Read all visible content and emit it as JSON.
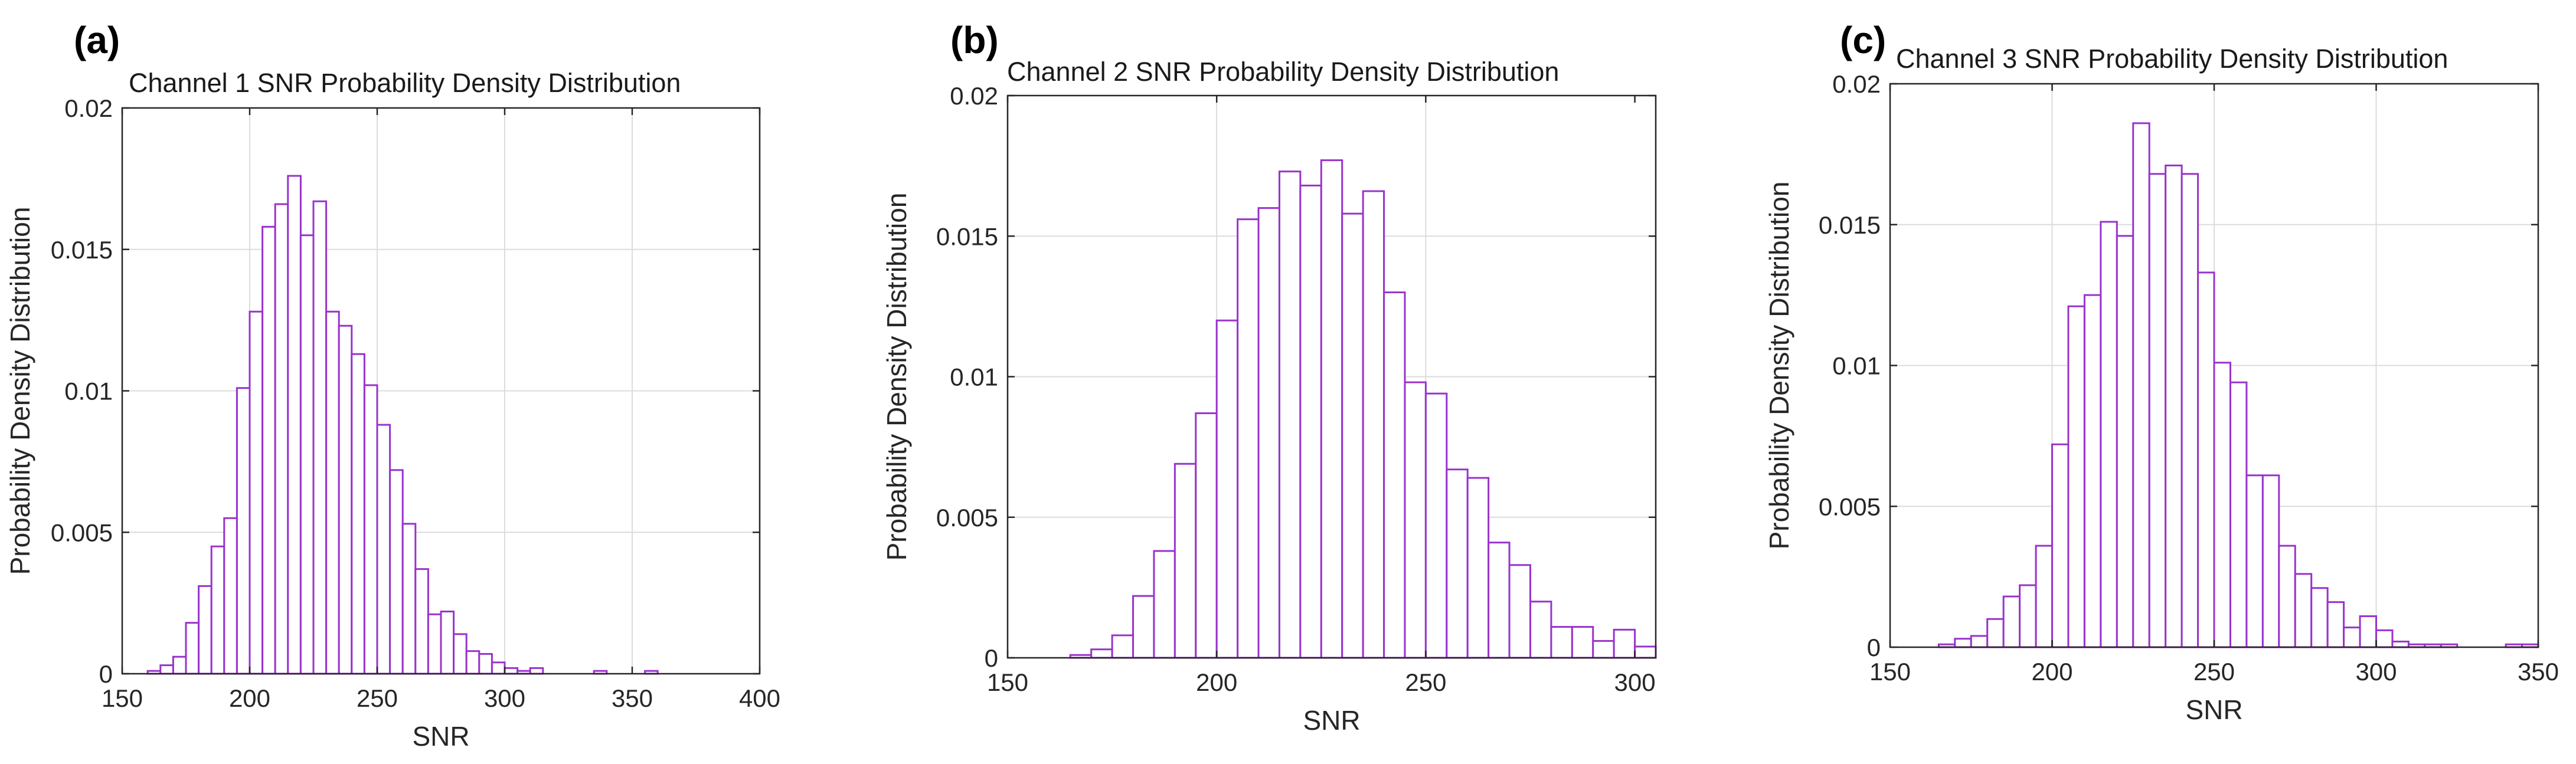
{
  "chart_data": [
    {
      "type": "bar",
      "panel_label": "(a)",
      "title": "Channel 1 SNR Probability Density Distribution",
      "xlabel": "SNR",
      "ylabel": "Probability Density Distribution",
      "xlim": [
        150,
        400
      ],
      "ylim": [
        0,
        0.02
      ],
      "grid": true,
      "bar_color": "#9933cc",
      "xticks": [
        150,
        200,
        250,
        300,
        350,
        400
      ],
      "xtick_labels": [
        "150",
        "200",
        "250",
        "300",
        "350",
        "400"
      ],
      "yticks": [
        0,
        0.005,
        0.01,
        0.015,
        0.02
      ],
      "ytick_labels": [
        "0",
        "0.005",
        "0.01",
        "0.015",
        "0.02"
      ],
      "bin_width": 5,
      "bin_starts": [
        160,
        165,
        170,
        175,
        180,
        185,
        190,
        195,
        200,
        205,
        210,
        215,
        220,
        225,
        230,
        235,
        240,
        245,
        250,
        255,
        260,
        265,
        270,
        275,
        280,
        285,
        290,
        295,
        300,
        305,
        310,
        315,
        320,
        325,
        330,
        335,
        340,
        345,
        350,
        355
      ],
      "values": [
        0.0001,
        0.0003,
        0.0006,
        0.0018,
        0.0031,
        0.0045,
        0.0055,
        0.0101,
        0.0128,
        0.0158,
        0.0166,
        0.0176,
        0.0155,
        0.0167,
        0.0128,
        0.0123,
        0.0113,
        0.0102,
        0.0088,
        0.0072,
        0.0053,
        0.0037,
        0.0021,
        0.0022,
        0.0014,
        0.0008,
        0.0007,
        0.0004,
        0.0002,
        0.0001,
        0.0002,
        0,
        0,
        0,
        0,
        0.0001,
        0,
        0,
        0,
        0.0001
      ]
    },
    {
      "type": "bar",
      "panel_label": "(b)",
      "title": "Channel 2 SNR Probability Density Distribution",
      "xlabel": "SNR",
      "ylabel": "Probability Density Distribution",
      "xlim": [
        150,
        305
      ],
      "ylim": [
        0,
        0.02
      ],
      "grid": true,
      "bar_color": "#9933cc",
      "xticks": [
        150,
        200,
        250,
        300
      ],
      "xtick_labels": [
        "150",
        "200",
        "250",
        "300"
      ],
      "yticks": [
        0,
        0.005,
        0.01,
        0.015,
        0.02
      ],
      "ytick_labels": [
        "0",
        "0.005",
        "0.01",
        "0.015",
        "0.02"
      ],
      "bin_width": 5,
      "bin_starts": [
        165,
        170,
        175,
        180,
        185,
        190,
        195,
        200,
        205,
        210,
        215,
        220,
        225,
        230,
        235,
        240,
        245,
        250,
        255,
        260,
        265,
        270,
        275,
        280,
        285,
        290,
        295,
        300
      ],
      "values": [
        0.0001,
        0.0003,
        0.0008,
        0.0022,
        0.0038,
        0.0069,
        0.0087,
        0.012,
        0.0156,
        0.016,
        0.0173,
        0.0168,
        0.0177,
        0.0158,
        0.0166,
        0.013,
        0.0098,
        0.0094,
        0.0067,
        0.0064,
        0.0041,
        0.0033,
        0.002,
        0.0011,
        0.0011,
        0.0006,
        0.001,
        0.0004
      ]
    },
    {
      "type": "bar",
      "panel_label": "(c)",
      "title": "Channel 3 SNR Probability Density Distribution",
      "xlabel": "SNR",
      "ylabel": "Probability Density Distribution",
      "xlim": [
        150,
        350
      ],
      "ylim": [
        0,
        0.02
      ],
      "grid": true,
      "bar_color": "#9933cc",
      "xticks": [
        150,
        200,
        250,
        300,
        350
      ],
      "xtick_labels": [
        "150",
        "200",
        "250",
        "300",
        "350"
      ],
      "yticks": [
        0,
        0.005,
        0.01,
        0.015,
        0.02
      ],
      "ytick_labels": [
        "0",
        "0.005",
        "0.01",
        "0.015",
        "0.02"
      ],
      "bin_width": 5,
      "bin_starts": [
        165,
        170,
        175,
        180,
        185,
        190,
        195,
        200,
        205,
        210,
        215,
        220,
        225,
        230,
        235,
        240,
        245,
        250,
        255,
        260,
        265,
        270,
        275,
        280,
        285,
        290,
        295,
        300,
        305,
        310,
        315,
        320,
        325,
        330,
        335,
        340,
        345
      ],
      "values": [
        0.0001,
        0.0003,
        0.0004,
        0.001,
        0.0018,
        0.0022,
        0.0036,
        0.0072,
        0.0121,
        0.0125,
        0.0151,
        0.0146,
        0.0186,
        0.0168,
        0.0171,
        0.0168,
        0.0133,
        0.0101,
        0.0094,
        0.0061,
        0.0061,
        0.0036,
        0.0026,
        0.0021,
        0.0016,
        0.0007,
        0.0011,
        0.0006,
        0.0002,
        0.0001,
        0.0001,
        0.0001,
        0,
        0,
        0,
        0.0001,
        0.0001
      ]
    }
  ]
}
